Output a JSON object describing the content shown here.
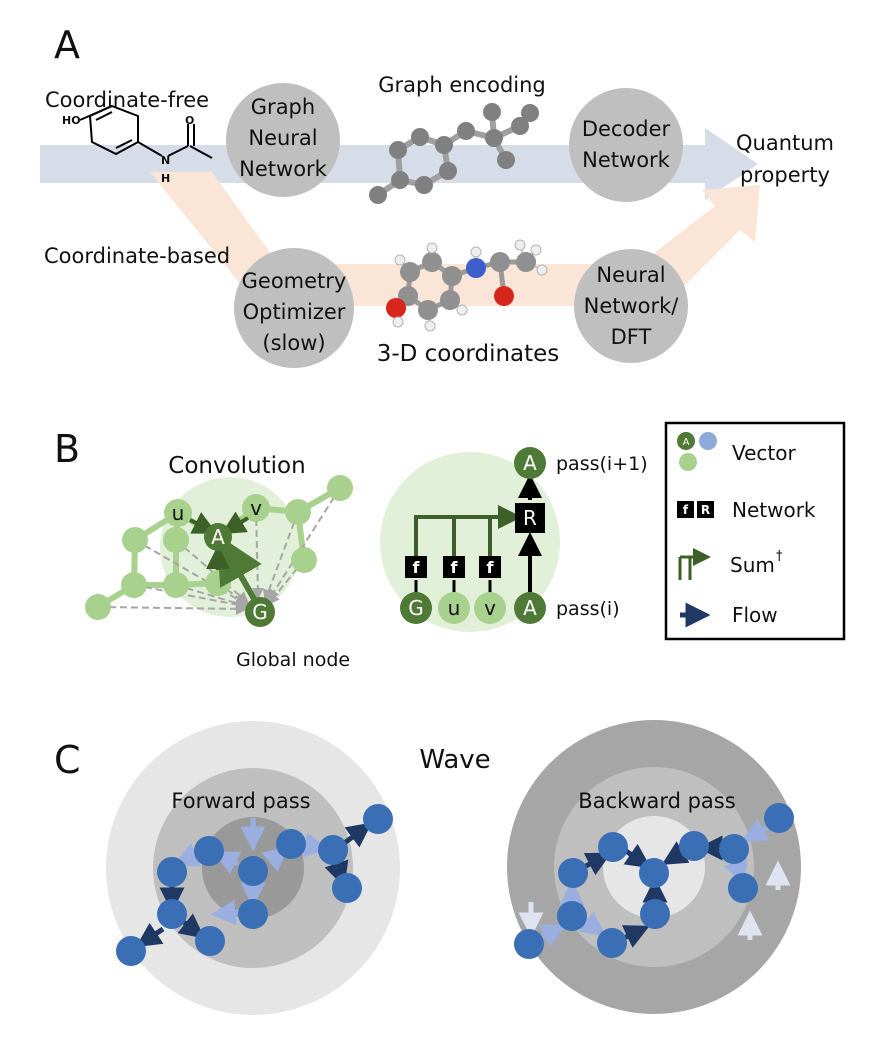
{
  "panels": {
    "a": "A",
    "b": "B",
    "c": "C"
  },
  "panel_a": {
    "coord_free": "Coordinate-free",
    "coord_based": "Coordinate-based",
    "gnn_line1": "Graph",
    "gnn_line2": "Neural",
    "gnn_line3": "Network",
    "graph_encoding": "Graph encoding",
    "decoder_line1": "Decoder",
    "decoder_line2": "Network",
    "quantum_line1": "Quantum",
    "quantum_line2": "property",
    "geo_line1": "Geometry",
    "geo_line2": "Optimizer",
    "geo_line3": "(slow)",
    "coords_3d": "3-D coordinates",
    "nn_line1": "Neural",
    "nn_line2": "Network/",
    "nn_line3": "DFT",
    "atom_ho": "HO",
    "atom_n": "N",
    "atom_h": "H",
    "atom_o": "O"
  },
  "panel_b": {
    "convolution": "Convolution",
    "global_node": "Global node",
    "node_u": "u",
    "node_v": "v",
    "node_a": "A",
    "node_g": "G",
    "f_label": "f",
    "r_label": "R",
    "pass_next": "pass(i+1)",
    "pass_cur": "pass(i)",
    "legend": {
      "vector": "Vector",
      "network": "Network",
      "sum": "Sum",
      "sum_mark": "†",
      "flow": "Flow"
    }
  },
  "panel_c": {
    "wave": "Wave",
    "forward": "Forward pass",
    "backward": "Backward pass"
  },
  "colors": {
    "green_dark": "#4e7a35",
    "green_light": "#a8d18d",
    "green_bg": "#e2efd9",
    "blue_node": "#3a6fb5",
    "arrow_dark": "#1f3864",
    "arrow_light": "#9aaee0",
    "grey_circle": "#bfbfbf",
    "blue_band": "#d6dce8",
    "peach_band": "#fbe5d6"
  }
}
